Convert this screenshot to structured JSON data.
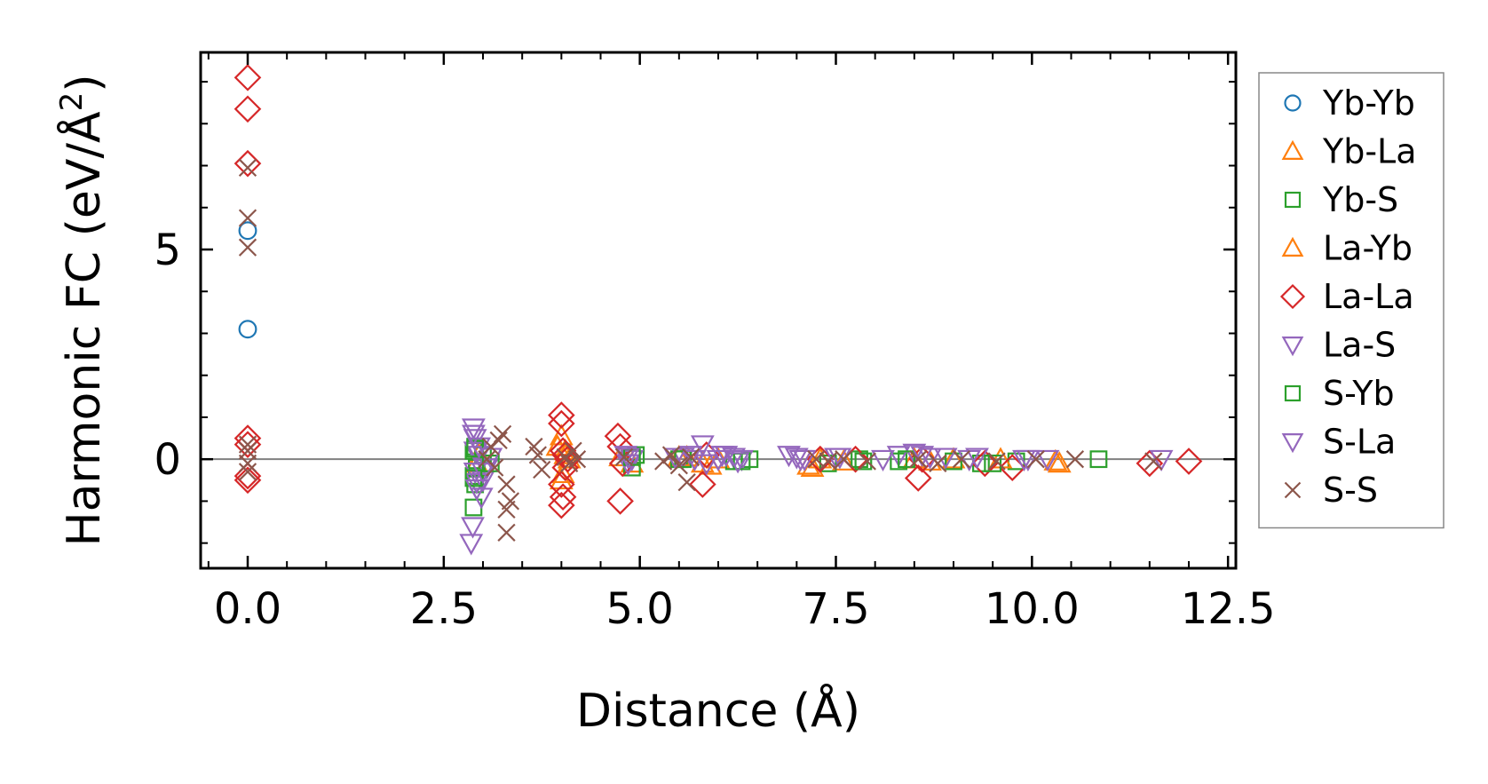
{
  "chart_data": {
    "type": "scatter",
    "title": "",
    "xlabel": "Distance (Å)",
    "ylabel_main": "Harmonic FC (eV/Å",
    "ylabel_sup": "2",
    "ylabel_close": ")",
    "xlim": [
      -0.6,
      12.6
    ],
    "ylim": [
      -2.6,
      9.7
    ],
    "xticks": [
      0.0,
      2.5,
      5.0,
      7.5,
      10.0,
      12.5
    ],
    "xtick_labels": [
      "0.0",
      "2.5",
      "5.0",
      "7.5",
      "10.0",
      "12.5"
    ],
    "xminor_step": 0.5,
    "yticks": [
      0,
      5
    ],
    "ytick_labels": [
      "0",
      "5"
    ],
    "yminor_step": 1,
    "zero_line": true,
    "legend_position": "right",
    "colors": {
      "blue": "#1f77b4",
      "orange": "#ff7f0e",
      "green": "#2ca02c",
      "red": "#d62728",
      "purple": "#9467bd",
      "brown": "#8c564b",
      "zero_line": "#808080",
      "legend_border": "#888888"
    },
    "series": [
      {
        "name": "Yb-Yb",
        "marker": "circle",
        "color": "#1f77b4",
        "x": [
          0.0,
          0.0
        ],
        "y": [
          5.45,
          3.1
        ]
      },
      {
        "name": "Yb-La",
        "marker": "triangle-up",
        "color": "#ff7f0e",
        "x": [
          2.92,
          2.95,
          4.0,
          4.02,
          4.05,
          4.1,
          4.75,
          4.9,
          5.5,
          5.8,
          6.0,
          7.15,
          7.3,
          7.6,
          8.5,
          9.0,
          10.35
        ],
        "y": [
          -0.1,
          0.1,
          0.55,
          -0.35,
          0.2,
          0.0,
          0.05,
          -0.1,
          0.05,
          -0.1,
          0.0,
          -0.15,
          0.0,
          -0.05,
          0.0,
          0.0,
          -0.1
        ]
      },
      {
        "name": "Yb-S",
        "marker": "square",
        "color": "#2ca02c",
        "x": [
          2.88,
          2.88,
          2.88,
          2.9,
          2.9,
          2.92,
          3.0,
          4.9,
          4.95,
          5.5,
          6.2,
          6.4,
          7.4,
          7.8,
          8.3,
          9.0,
          9.35,
          9.8,
          10.85
        ],
        "y": [
          -1.15,
          -0.4,
          0.2,
          -0.6,
          0.3,
          -0.2,
          0.1,
          -0.2,
          0.1,
          0.0,
          -0.05,
          0.0,
          -0.1,
          0.0,
          -0.05,
          -0.05,
          -0.1,
          -0.05,
          0.0
        ]
      },
      {
        "name": "La-Yb",
        "marker": "triangle-up",
        "color": "#ff7f0e",
        "x": [
          3.95,
          4.0,
          4.05,
          5.6,
          5.9,
          7.2,
          8.7,
          9.6,
          10.3
        ],
        "y": [
          0.3,
          -0.5,
          0.1,
          0.05,
          -0.15,
          -0.2,
          -0.05,
          0.0,
          -0.05
        ]
      },
      {
        "name": "La-La",
        "marker": "diamond",
        "color": "#d62728",
        "x": [
          0.0,
          0.0,
          0.0,
          0.0,
          0.0,
          0.0,
          0.0,
          4.0,
          4.0,
          4.0,
          4.0,
          4.02,
          4.02,
          4.05,
          4.05,
          4.08,
          4.72,
          4.75,
          4.75,
          4.78,
          5.8,
          5.85,
          7.3,
          7.75,
          8.55,
          8.6,
          9.4,
          9.75,
          11.5,
          12.0
        ],
        "y": [
          9.1,
          8.35,
          7.05,
          0.5,
          0.35,
          -0.4,
          -0.5,
          1.05,
          0.85,
          -0.6,
          -1.1,
          -0.9,
          0.2,
          -0.2,
          0.1,
          0.0,
          0.55,
          0.3,
          -1.0,
          -0.1,
          -0.6,
          0.1,
          0.0,
          0.0,
          -0.45,
          0.0,
          -0.1,
          -0.2,
          -0.1,
          -0.05
        ]
      },
      {
        "name": "La-S",
        "marker": "triangle-down",
        "color": "#9467bd",
        "x": [
          2.85,
          2.87,
          2.88,
          2.9,
          2.9,
          2.9,
          2.92,
          2.95,
          2.98,
          3.0,
          3.05,
          4.82,
          4.85,
          4.9,
          5.55,
          5.65,
          5.8,
          5.85,
          6.0,
          6.05,
          6.2,
          6.3,
          7.0,
          7.1,
          7.55,
          8.3,
          8.5,
          8.7,
          9.3,
          9.95,
          10.2
        ],
        "y": [
          -2.0,
          -1.6,
          0.75,
          0.5,
          0.2,
          -0.3,
          -0.55,
          0.1,
          -0.9,
          -0.5,
          -0.2,
          0.1,
          -0.1,
          0.0,
          0.05,
          0.1,
          0.35,
          -0.1,
          0.0,
          0.1,
          0.05,
          0.0,
          0.05,
          0.0,
          0.05,
          0.1,
          0.15,
          0.05,
          0.05,
          0.0,
          0.0
        ]
      },
      {
        "name": "S-Yb",
        "marker": "square",
        "color": "#2ca02c",
        "x": [
          2.88,
          2.9,
          3.1,
          4.9,
          5.55,
          6.3,
          7.85,
          8.4,
          9.5
        ],
        "y": [
          -0.45,
          0.25,
          -0.1,
          0.05,
          0.0,
          -0.05,
          -0.05,
          0.0,
          -0.1
        ]
      },
      {
        "name": "S-La",
        "marker": "triangle-down",
        "color": "#9467bd",
        "x": [
          2.88,
          2.92,
          2.95,
          3.0,
          3.1,
          4.85,
          5.45,
          5.7,
          6.1,
          6.25,
          6.9,
          7.05,
          7.5,
          8.1,
          8.6,
          8.9,
          9.2,
          9.9,
          11.65
        ],
        "y": [
          0.6,
          -0.7,
          0.3,
          -0.3,
          0.05,
          0.05,
          0.05,
          0.0,
          0.1,
          -0.05,
          0.1,
          0.0,
          0.05,
          0.0,
          0.1,
          0.05,
          0.0,
          0.0,
          0.0
        ]
      },
      {
        "name": "S-S",
        "marker": "x",
        "color": "#8c564b",
        "x": [
          0.0,
          0.0,
          0.0,
          0.0,
          0.0,
          0.0,
          0.0,
          3.05,
          3.1,
          3.15,
          3.2,
          3.25,
          3.3,
          3.3,
          3.3,
          3.35,
          3.65,
          3.7,
          3.75,
          4.05,
          4.1,
          4.15,
          4.2,
          4.8,
          5.3,
          5.4,
          5.5,
          5.6,
          5.65,
          7.25,
          7.4,
          7.6,
          7.9,
          8.55,
          8.8,
          9.1,
          9.55,
          10.05,
          10.55,
          11.55
        ],
        "y": [
          6.95,
          5.75,
          5.05,
          0.35,
          0.2,
          -0.1,
          -0.3,
          0.0,
          0.3,
          -0.2,
          0.45,
          0.6,
          -0.6,
          -1.2,
          -1.75,
          -1.0,
          0.3,
          0.1,
          -0.25,
          0.05,
          -0.1,
          0.2,
          0.0,
          0.05,
          -0.05,
          0.1,
          -0.15,
          -0.55,
          0.05,
          0.0,
          -0.05,
          0.0,
          -0.05,
          0.0,
          -0.1,
          0.0,
          -0.05,
          0.0,
          0.0,
          -0.05
        ]
      }
    ]
  }
}
